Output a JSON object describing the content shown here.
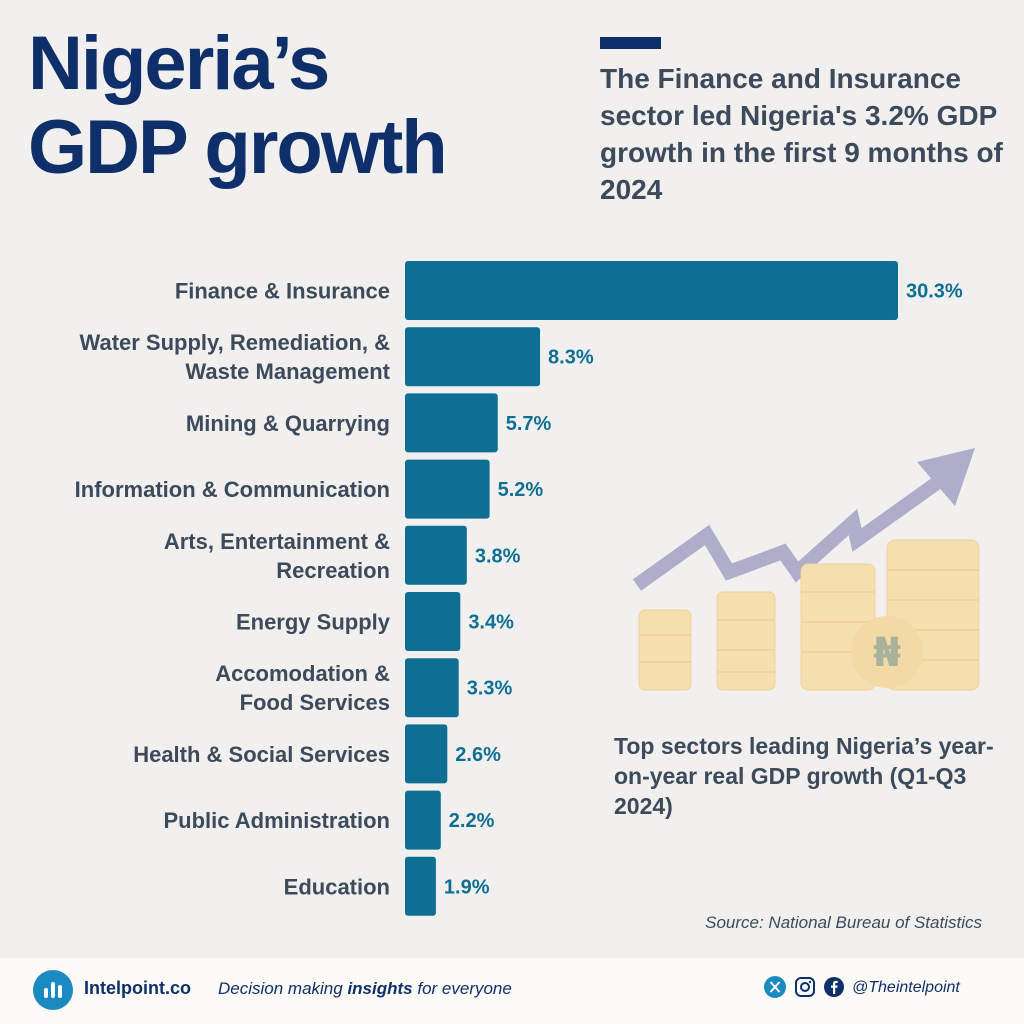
{
  "header": {
    "title_line1": "Nigeria’s",
    "title_line2": "GDP growth",
    "subtitle": "The Finance and Insurance sector led Nigeria's 3.2% GDP growth in the first 9 months of 2024"
  },
  "chart_data": {
    "type": "bar",
    "orientation": "horizontal",
    "categories": [
      [
        "Finance & Insurance"
      ],
      [
        "Water Supply, Remediation, &",
        "Waste Management"
      ],
      [
        "Mining & Quarrying"
      ],
      [
        "Information & Communication"
      ],
      [
        "Arts, Entertainment &",
        "Recreation"
      ],
      [
        "Energy Supply"
      ],
      [
        "Accomodation &",
        "Food Services"
      ],
      [
        "Health & Social Services"
      ],
      [
        "Public Administration"
      ],
      [
        "Education"
      ]
    ],
    "values": [
      30.3,
      8.3,
      5.7,
      5.2,
      3.8,
      3.4,
      3.3,
      2.6,
      2.2,
      1.9
    ],
    "value_labels": [
      "30.3%",
      "8.3%",
      "5.7%",
      "5.2%",
      "3.8%",
      "3.4%",
      "3.3%",
      "2.6%",
      "2.2%",
      "1.9%"
    ],
    "bar_color": "#0e6f93",
    "label_color": "#3c4a5c",
    "value_color": "#0e6f93",
    "grid": false,
    "legend": "none"
  },
  "caption": "Top sectors leading Nigeria’s year-on-year real GDP growth (Q1-Q3 2024)",
  "source": "Source: National Bureau of Statistics",
  "illustration": {
    "icon": "coin-stacks-growth-arrow-icon",
    "coin_symbol": "₦",
    "coin_color": "#f6dfaf",
    "arrow_color": "#aeaecb"
  },
  "footer": {
    "brand": "Intelpoint.co",
    "tagline_pre": "Decision making ",
    "tagline_bold": "insights",
    "tagline_post": " for everyone",
    "handle": "@Theintelpoint",
    "social_icons": [
      "x-icon",
      "instagram-icon",
      "facebook-icon"
    ],
    "brand_color": "#1b8ac1"
  }
}
